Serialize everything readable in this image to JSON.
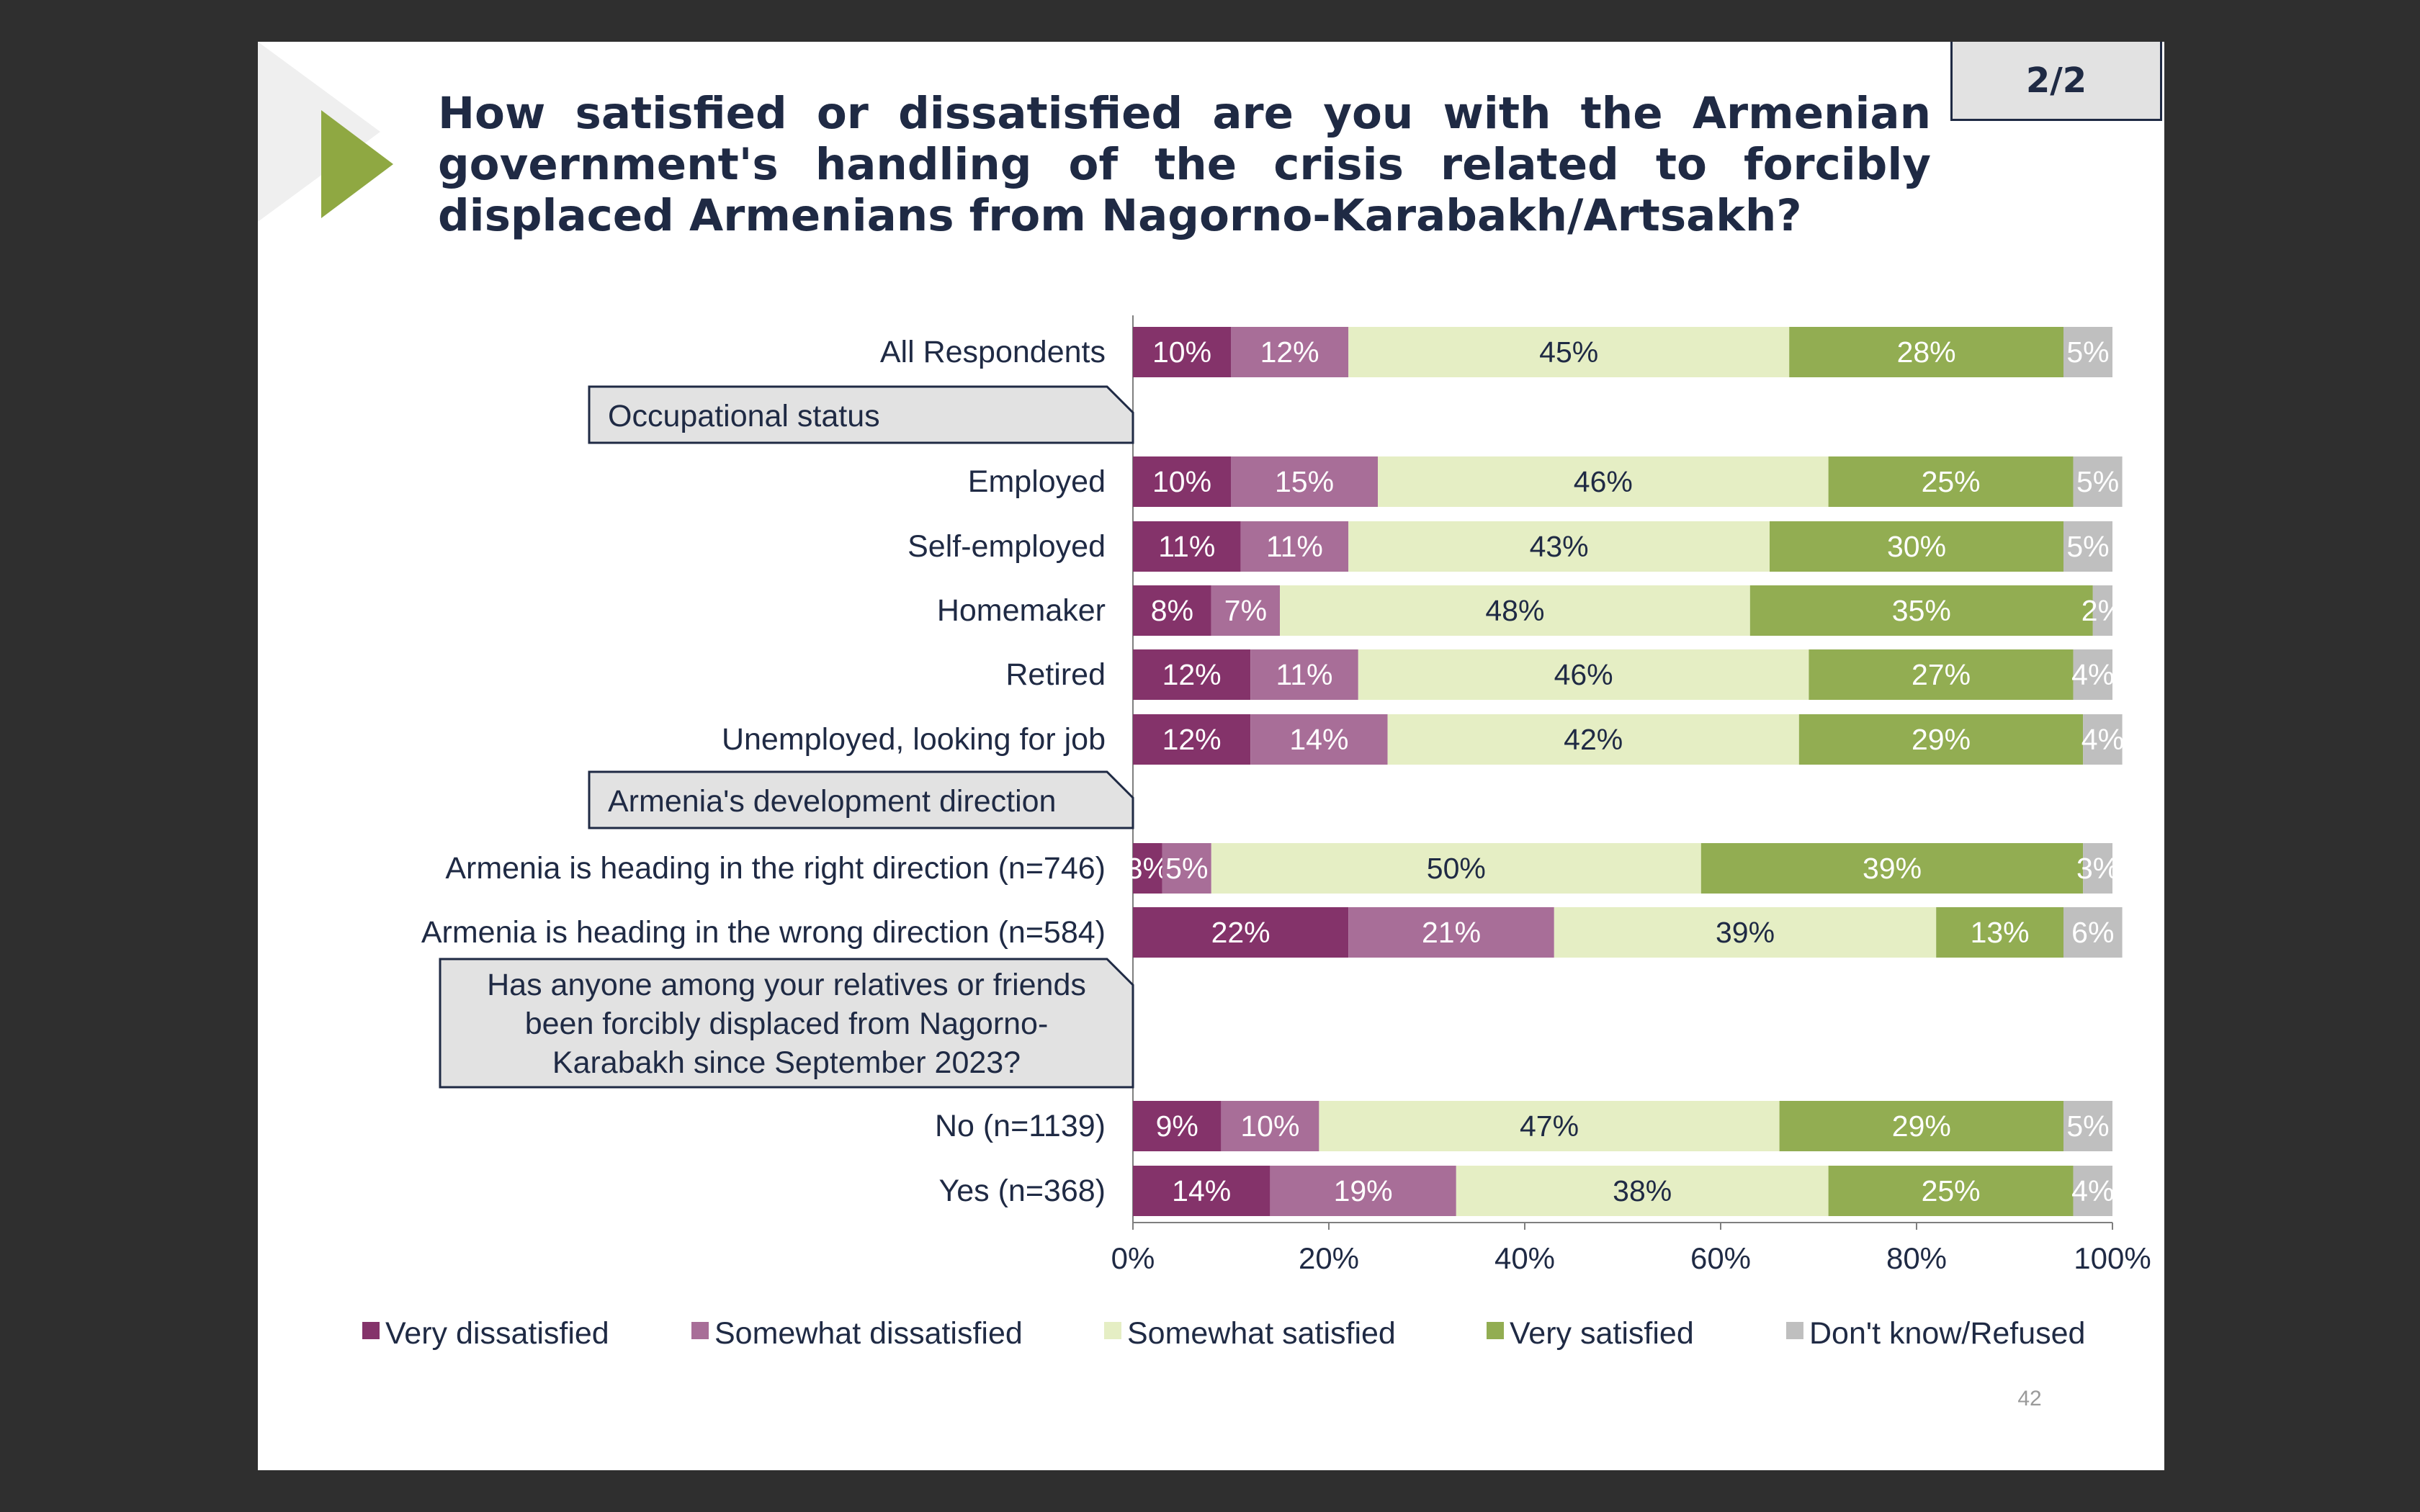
{
  "slide": {
    "title": "How satisfied or dissatisfied are you with the Armenian government's handling of the crisis related to forcibly displaced Armenians from Nagorno-Karabakh/Artsakh?",
    "page_indicator": "2/2",
    "page_number": "42"
  },
  "colors": {
    "background": "#2f2f2f",
    "title": "#1f2a44",
    "accent_green": "#8fa842",
    "section_box": "#e2e2e2"
  },
  "chart_data": {
    "type": "bar",
    "orientation": "horizontal",
    "stacked": true,
    "percent_axis": true,
    "xlim": [
      0,
      100
    ],
    "ticks": [
      {
        "value": 0,
        "label": "0%"
      },
      {
        "value": 20,
        "label": "20%"
      },
      {
        "value": 40,
        "label": "40%"
      },
      {
        "value": 60,
        "label": "60%"
      },
      {
        "value": 80,
        "label": "80%"
      },
      {
        "value": 100,
        "label": "100%"
      }
    ],
    "legend_position": "bottom",
    "series": [
      {
        "name": "Very dissatisfied",
        "color": "#84336a",
        "label_color": "#ffffff"
      },
      {
        "name": "Somewhat dissatisfied",
        "color": "#a86e98",
        "label_color": "#ffffff"
      },
      {
        "name": "Somewhat satisfied",
        "color": "#e5eec4",
        "label_color": "#1f2a44"
      },
      {
        "name": "Very satisfied",
        "color": "#92ad52",
        "label_color": "#ffffff"
      },
      {
        "name": "Don't know/Refused",
        "color": "#bfbfbf",
        "label_color": "#ffffff"
      }
    ],
    "rows": [
      {
        "type": "bar",
        "label": "All Respondents",
        "values": [
          10,
          12,
          45,
          28,
          5
        ]
      },
      {
        "type": "section",
        "label": "Occupational status"
      },
      {
        "type": "bar",
        "label": "Employed",
        "values": [
          10,
          15,
          46,
          25,
          5
        ]
      },
      {
        "type": "bar",
        "label": "Self-employed",
        "values": [
          11,
          11,
          43,
          30,
          5
        ]
      },
      {
        "type": "bar",
        "label": "Homemaker",
        "values": [
          8,
          7,
          48,
          35,
          2
        ]
      },
      {
        "type": "bar",
        "label": "Retired",
        "values": [
          12,
          11,
          46,
          27,
          4
        ]
      },
      {
        "type": "bar",
        "label": "Unemployed, looking for job",
        "values": [
          12,
          14,
          42,
          29,
          4
        ]
      },
      {
        "type": "section",
        "label": "Armenia's development direction"
      },
      {
        "type": "bar",
        "label": "Armenia is heading in the right direction (n=746)",
        "values": [
          3,
          5,
          50,
          39,
          3
        ]
      },
      {
        "type": "bar",
        "label": "Armenia is heading in the wrong direction (n=584)",
        "values": [
          22,
          21,
          39,
          13,
          6
        ]
      },
      {
        "type": "section",
        "lines": [
          "Has anyone among your relatives or friends",
          "been forcibly displaced from Nagorno-",
          "Karabakh since September 2023?"
        ]
      },
      {
        "type": "bar",
        "label": "No (n=1139)",
        "values": [
          9,
          10,
          47,
          29,
          5
        ]
      },
      {
        "type": "bar",
        "label": "Yes (n=368)",
        "values": [
          14,
          19,
          38,
          25,
          4
        ]
      }
    ]
  }
}
